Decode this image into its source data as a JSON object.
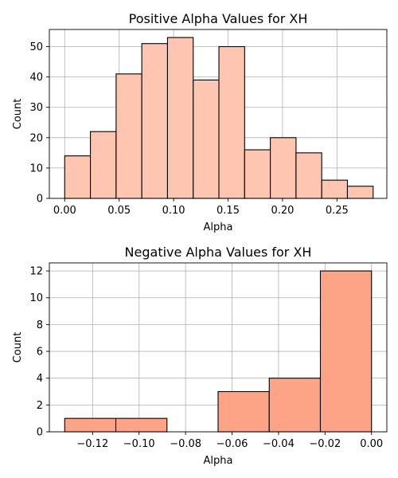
{
  "chart_data": [
    {
      "type": "bar",
      "title": "Positive Alpha Values for XH",
      "xlabel": "Alpha",
      "ylabel": "Count",
      "color": "#fec6b0",
      "grid": true,
      "xlim": [
        -0.0141,
        0.2958
      ],
      "ylim": [
        0,
        55.65
      ],
      "xticks": [
        0.0,
        0.05,
        0.1,
        0.15,
        0.2,
        0.25
      ],
      "xtick_labels": [
        "0.00",
        "0.05",
        "0.10",
        "0.15",
        "0.20",
        "0.25"
      ],
      "yticks": [
        0,
        10,
        20,
        30,
        40,
        50
      ],
      "ytick_labels": [
        "0",
        "10",
        "20",
        "30",
        "40",
        "50"
      ],
      "bin_edges": [
        0.0,
        0.0236,
        0.0472,
        0.0708,
        0.0944,
        0.118,
        0.1416,
        0.1652,
        0.1888,
        0.2124,
        0.236,
        0.2596,
        0.2832
      ],
      "values": [
        14,
        22,
        41,
        51,
        53,
        39,
        50,
        16,
        20,
        15,
        6,
        4
      ]
    },
    {
      "type": "bar",
      "title": "Negative Alpha Values for XH",
      "xlabel": "Alpha",
      "ylabel": "Count",
      "color": "#fea486",
      "grid": true,
      "xlim": [
        -0.1386,
        0.0066
      ],
      "ylim": [
        0,
        12.6
      ],
      "xticks": [
        -0.12,
        -0.1,
        -0.08,
        -0.06,
        -0.04,
        -0.02,
        0.0
      ],
      "xtick_labels": [
        "−0.12",
        "−0.10",
        "−0.08",
        "−0.06",
        "−0.04",
        "−0.02",
        "0.00"
      ],
      "yticks": [
        0,
        2,
        4,
        6,
        8,
        10,
        12
      ],
      "ytick_labels": [
        "0",
        "2",
        "4",
        "6",
        "8",
        "10",
        "12"
      ],
      "bin_edges": [
        -0.132,
        -0.11,
        -0.088,
        -0.066,
        -0.044,
        -0.022,
        0.0
      ],
      "values": [
        1,
        1,
        0,
        3,
        4,
        12
      ]
    }
  ]
}
